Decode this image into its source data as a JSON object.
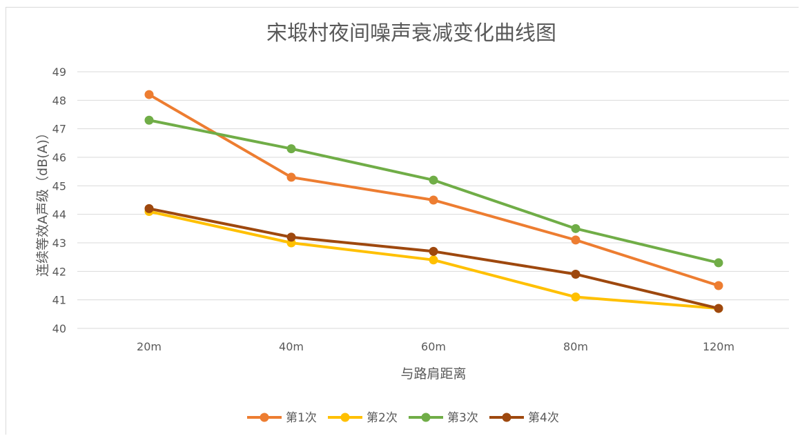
{
  "chart_data": {
    "type": "line",
    "title": "宋塅村夜间噪声衰减变化曲线图",
    "xlabel": "与路肩距离",
    "ylabel": "连续等效A声级（dB(A)）",
    "categories": [
      "20m",
      "40m",
      "60m",
      "80m",
      "120m"
    ],
    "ylim": [
      40,
      49
    ],
    "yticks": [
      40,
      41,
      42,
      43,
      44,
      45,
      46,
      47,
      48,
      49
    ],
    "grid": true,
    "legend_position": "bottom",
    "series": [
      {
        "name": "第1次",
        "color": "#ED7D31",
        "values": [
          48.2,
          45.3,
          44.5,
          43.1,
          41.5
        ]
      },
      {
        "name": "第2次",
        "color": "#FFC000",
        "values": [
          44.1,
          43.0,
          42.4,
          41.1,
          40.7
        ]
      },
      {
        "name": "第3次",
        "color": "#70AD47",
        "values": [
          47.3,
          46.3,
          45.2,
          43.5,
          42.3
        ]
      },
      {
        "name": "第4次",
        "color": "#9E480E",
        "values": [
          44.2,
          43.2,
          42.7,
          41.9,
          40.7
        ]
      }
    ]
  }
}
